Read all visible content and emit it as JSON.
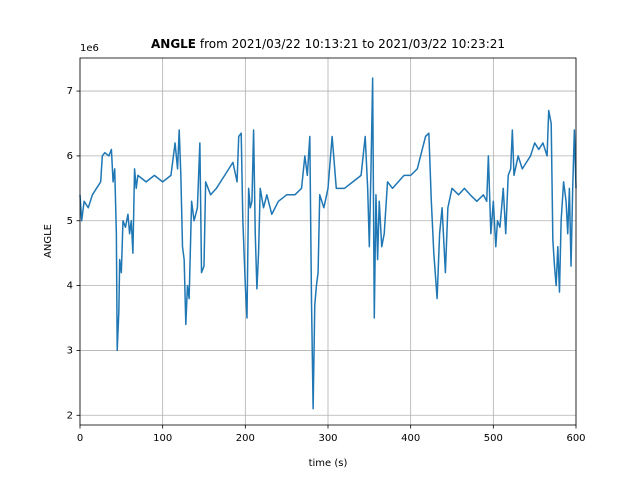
{
  "chart_data": {
    "type": "line",
    "title_parts": [
      "ANGLE",
      "from 2021/03/22 10:13:21 to 2021/03/22 10:23:21"
    ],
    "xlabel": "time (s)",
    "ylabel": "ANGLE",
    "y_offset": "1e6",
    "xlim": [
      0,
      600
    ],
    "ylim": [
      1.85,
      7.51
    ],
    "xticks": [
      0,
      100,
      200,
      300,
      400,
      500,
      600
    ],
    "yticks": [
      2,
      3,
      4,
      5,
      6,
      7
    ],
    "grid": true,
    "x": [
      0,
      2,
      5,
      10,
      15,
      20,
      25,
      27,
      30,
      35,
      38,
      40,
      42,
      44,
      45,
      47,
      48,
      50,
      52,
      55,
      58,
      60,
      62,
      64,
      66,
      68,
      70,
      80,
      90,
      100,
      110,
      115,
      118,
      120,
      122,
      124,
      126,
      128,
      130,
      132,
      135,
      138,
      142,
      145,
      147,
      150,
      152,
      158,
      165,
      175,
      185,
      190,
      192,
      195,
      197,
      200,
      202,
      204,
      206,
      208,
      210,
      212,
      214,
      216,
      218,
      222,
      226,
      232,
      240,
      250,
      260,
      268,
      272,
      275,
      278,
      280,
      282,
      284,
      286,
      288,
      290,
      295,
      300,
      305,
      310,
      320,
      330,
      340,
      345,
      348,
      350,
      352,
      354,
      356,
      358,
      360,
      362,
      365,
      368,
      372,
      378,
      385,
      392,
      400,
      408,
      412,
      418,
      422,
      425,
      428,
      432,
      435,
      438,
      442,
      445,
      450,
      458,
      465,
      472,
      480,
      488,
      492,
      494,
      497,
      500,
      503,
      505,
      508,
      512,
      515,
      518,
      521,
      523,
      525,
      530,
      535,
      540,
      545,
      550,
      555,
      560,
      565,
      567,
      570,
      572,
      574,
      576,
      578,
      580,
      582,
      585,
      588,
      590,
      592,
      594,
      596,
      598,
      600
    ],
    "series": [
      {
        "name": "ANGLE",
        "color": "#1f77b4",
        "values": [
          5.4,
          5.0,
          5.3,
          5.2,
          5.4,
          5.5,
          5.6,
          6.0,
          6.05,
          6.0,
          6.1,
          5.6,
          5.8,
          4.8,
          3.0,
          3.6,
          4.4,
          4.2,
          5.0,
          4.9,
          5.1,
          4.8,
          5.0,
          4.5,
          5.8,
          5.5,
          5.7,
          5.6,
          5.7,
          5.6,
          5.7,
          6.2,
          5.8,
          6.4,
          5.7,
          4.6,
          4.4,
          3.4,
          4.0,
          3.8,
          5.3,
          5.0,
          5.2,
          6.2,
          4.2,
          4.3,
          5.6,
          5.4,
          5.5,
          5.7,
          5.9,
          5.6,
          6.3,
          6.35,
          5.0,
          4.0,
          3.5,
          5.5,
          5.2,
          5.3,
          6.4,
          4.8,
          3.95,
          4.5,
          5.5,
          5.2,
          5.4,
          5.1,
          5.3,
          5.4,
          5.4,
          5.5,
          6.0,
          5.7,
          6.3,
          3.8,
          2.1,
          3.7,
          4.0,
          4.2,
          5.4,
          5.2,
          5.5,
          6.3,
          5.5,
          5.5,
          5.6,
          5.7,
          6.3,
          5.5,
          4.6,
          5.8,
          7.2,
          3.5,
          5.4,
          4.4,
          5.3,
          4.6,
          4.8,
          5.6,
          5.5,
          5.6,
          5.7,
          5.7,
          5.8,
          6.0,
          6.3,
          6.35,
          5.3,
          4.5,
          3.8,
          4.8,
          5.2,
          4.2,
          5.2,
          5.5,
          5.4,
          5.5,
          5.4,
          5.3,
          5.4,
          5.3,
          6.0,
          4.8,
          5.3,
          4.6,
          5.0,
          4.9,
          5.5,
          4.8,
          5.7,
          5.8,
          6.4,
          5.7,
          6.0,
          5.8,
          5.9,
          6.0,
          6.2,
          6.1,
          6.2,
          6.0,
          6.7,
          6.5,
          4.7,
          4.3,
          4.0,
          4.6,
          3.9,
          5.0,
          5.6,
          5.3,
          4.8,
          5.5,
          4.3,
          5.5,
          6.4,
          5.5
        ]
      }
    ]
  }
}
